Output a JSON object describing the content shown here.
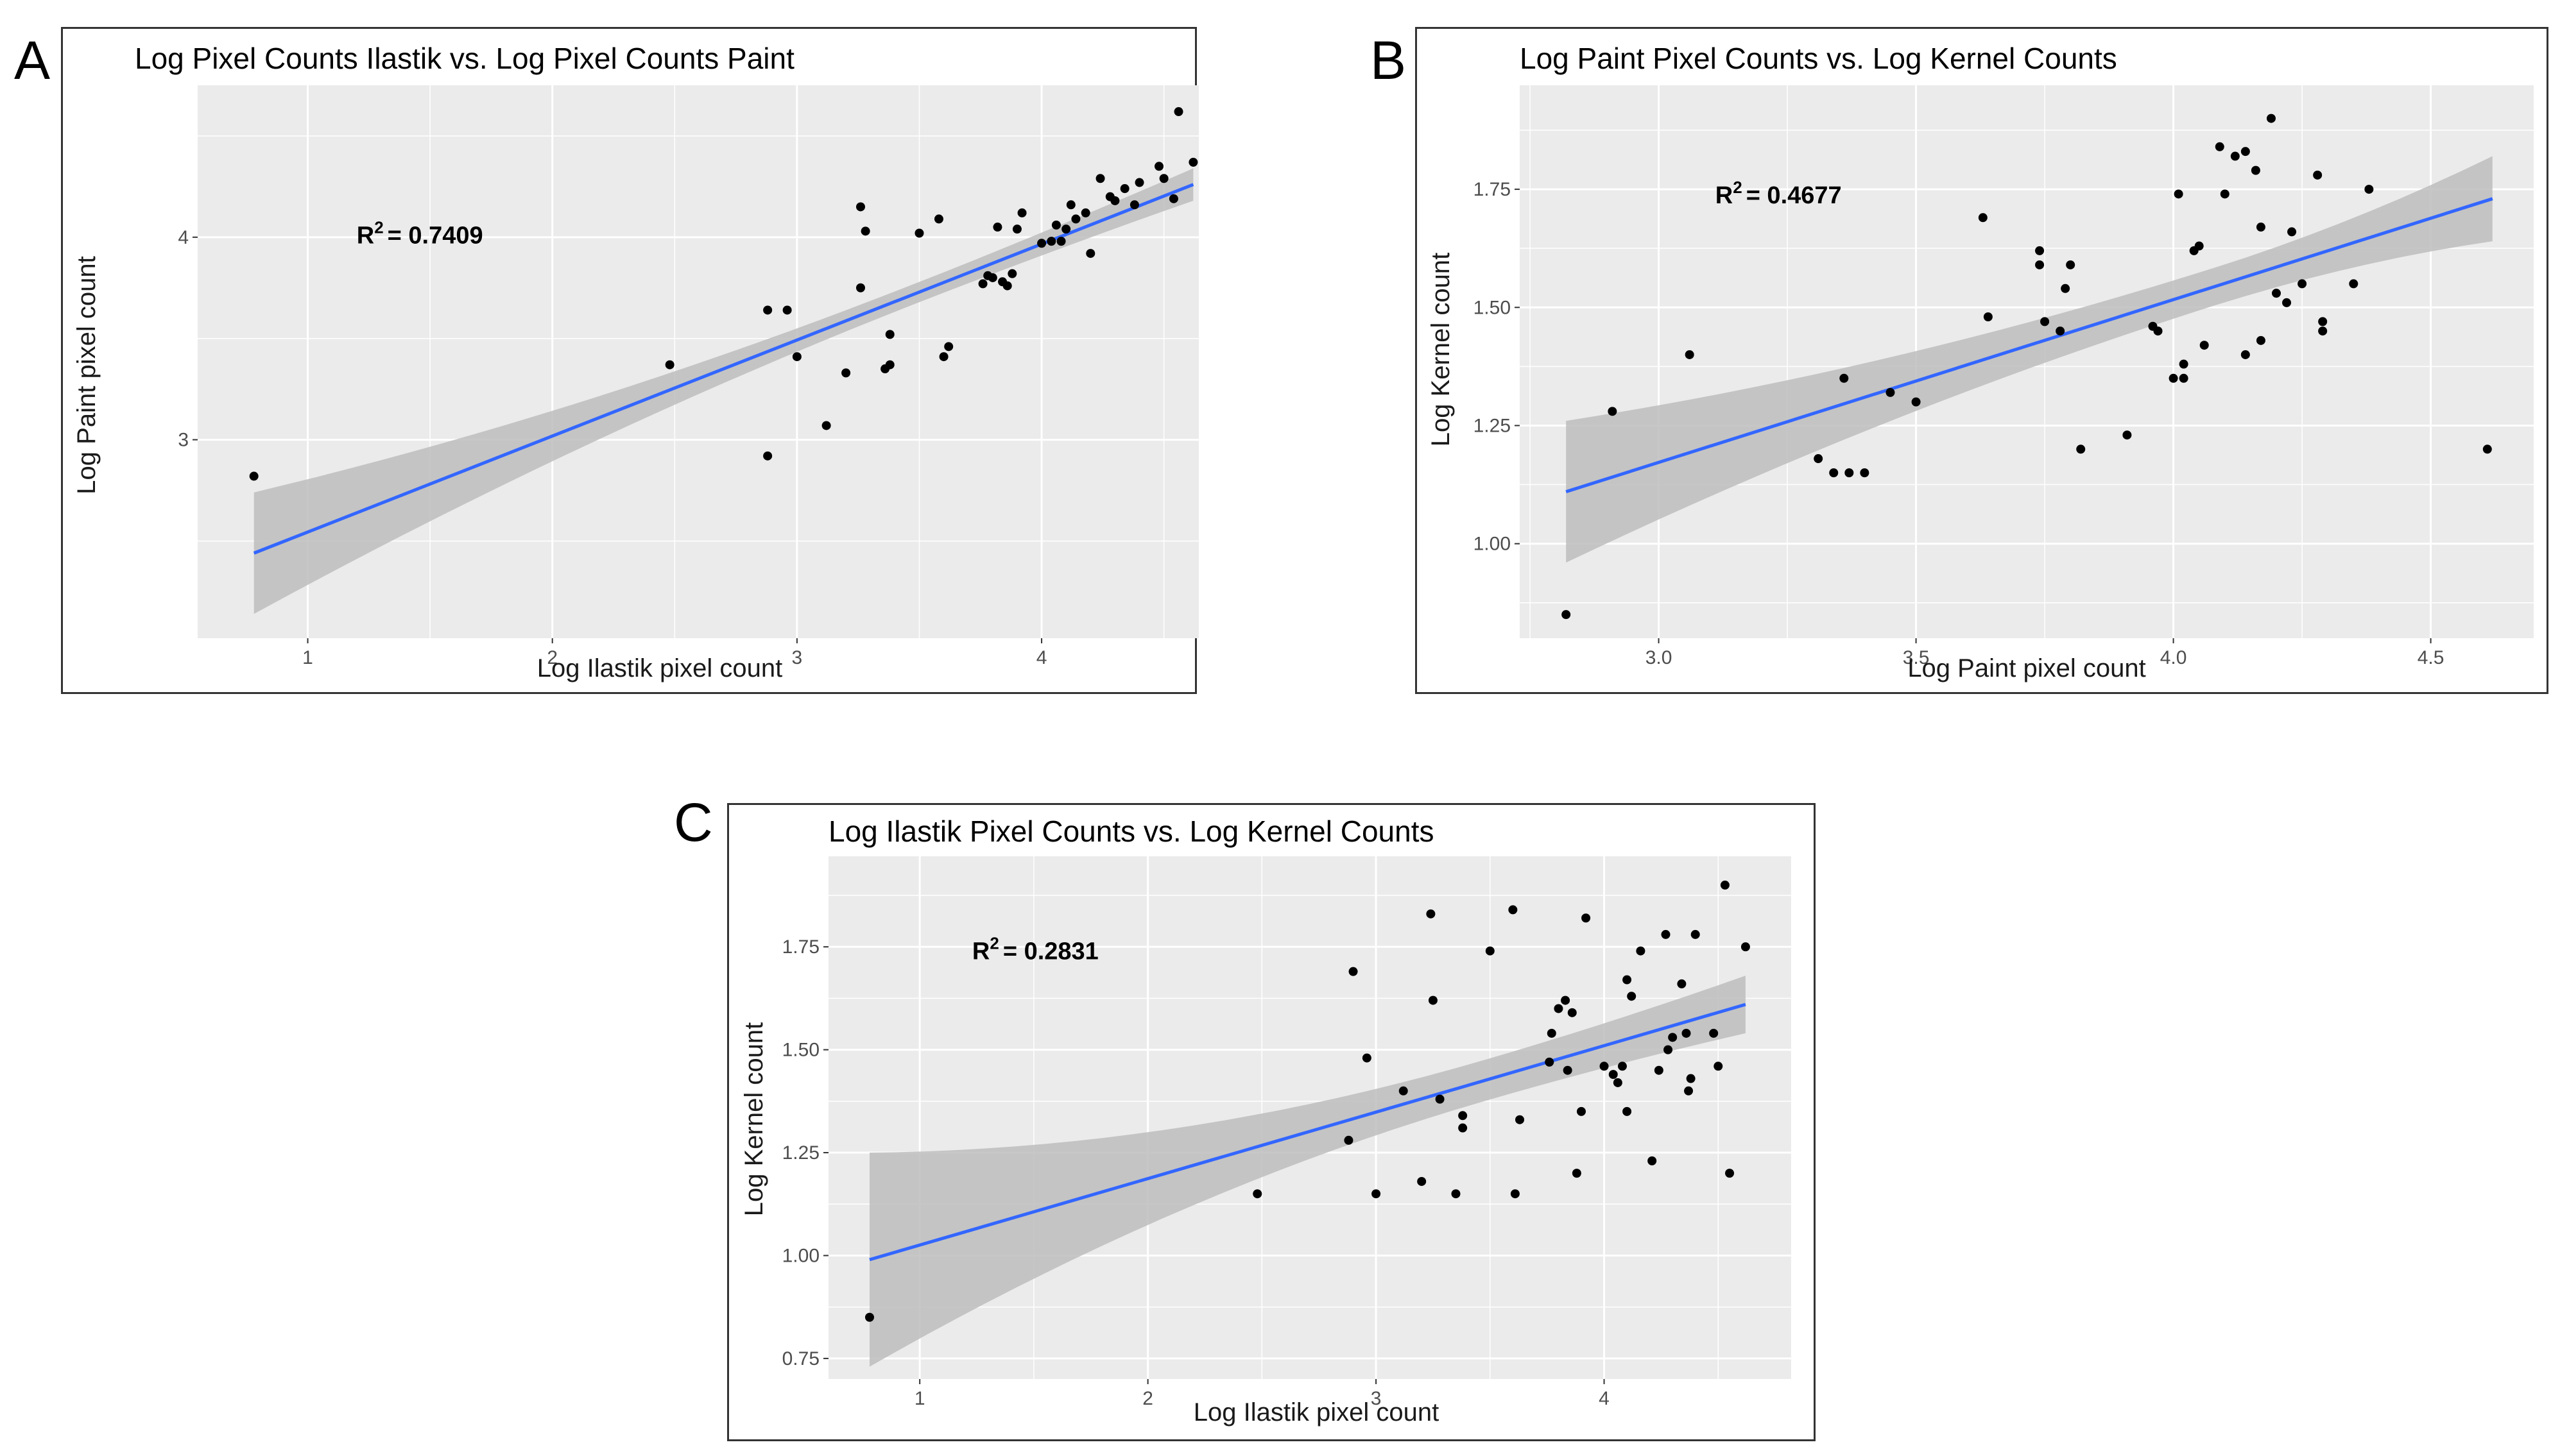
{
  "panels": [
    "A",
    "B",
    "C"
  ],
  "colors": {
    "panel_bg": "#ebebeb",
    "grid": "#ffffff",
    "band": "#bdbdbd",
    "line": "#3366ff",
    "point": "#000000"
  },
  "chart_data": [
    {
      "id": "A",
      "type": "scatter",
      "title": "Log Pixel Counts Ilastik vs. Log Pixel Counts Paint",
      "xlabel": "Log Ilastik pixel count",
      "ylabel": "Log Paint pixel count",
      "xlim": [
        0.55,
        4.8
      ],
      "ylim": [
        2.02,
        4.75
      ],
      "xticks": [
        1,
        2,
        3,
        4
      ],
      "xtick_labels": [
        "1",
        "2",
        "3",
        "4"
      ],
      "yticks": [
        3,
        4
      ],
      "ytick_labels": [
        "3",
        "4"
      ],
      "annotation": {
        "label": "R",
        "sup": "2",
        "value": "= 0.7409",
        "x": 1.2,
        "y": 3.97
      },
      "fit": {
        "x0": 0.78,
        "y0": 2.44,
        "x1": 4.62,
        "y1": 4.26,
        "se0": 0.3,
        "se1": 0.08,
        "se_mid": 0.05
      },
      "points": [
        [
          0.78,
          2.82
        ],
        [
          2.48,
          3.37
        ],
        [
          2.88,
          2.92
        ],
        [
          2.88,
          3.64
        ],
        [
          2.96,
          3.64
        ],
        [
          3.0,
          3.41
        ],
        [
          3.12,
          3.07
        ],
        [
          3.2,
          3.33
        ],
        [
          3.26,
          3.75
        ],
        [
          3.26,
          4.15
        ],
        [
          3.28,
          4.03
        ],
        [
          3.36,
          3.35
        ],
        [
          3.38,
          3.37
        ],
        [
          3.38,
          3.52
        ],
        [
          3.5,
          4.02
        ],
        [
          3.58,
          4.09
        ],
        [
          3.6,
          3.41
        ],
        [
          3.62,
          3.46
        ],
        [
          3.76,
          3.77
        ],
        [
          3.78,
          3.81
        ],
        [
          3.8,
          3.8
        ],
        [
          3.82,
          4.05
        ],
        [
          3.84,
          3.78
        ],
        [
          3.86,
          3.76
        ],
        [
          3.88,
          3.82
        ],
        [
          3.9,
          4.04
        ],
        [
          3.92,
          4.12
        ],
        [
          4.0,
          3.97
        ],
        [
          4.04,
          3.98
        ],
        [
          4.06,
          4.06
        ],
        [
          4.08,
          3.98
        ],
        [
          4.1,
          4.04
        ],
        [
          4.12,
          4.16
        ],
        [
          4.14,
          4.09
        ],
        [
          4.18,
          4.12
        ],
        [
          4.2,
          3.92
        ],
        [
          4.24,
          4.29
        ],
        [
          4.28,
          4.2
        ],
        [
          4.3,
          4.18
        ],
        [
          4.34,
          4.24
        ],
        [
          4.38,
          4.16
        ],
        [
          4.4,
          4.27
        ],
        [
          4.48,
          4.35
        ],
        [
          4.5,
          4.29
        ],
        [
          4.54,
          4.19
        ],
        [
          4.56,
          4.62
        ],
        [
          4.62,
          4.37
        ]
      ]
    },
    {
      "id": "B",
      "type": "scatter",
      "title": "Log Paint Pixel Counts vs. Log Kernel Counts",
      "xlabel": "Log Paint pixel count",
      "ylabel": "Log Kernel count",
      "xlim": [
        2.73,
        4.7
      ],
      "ylim": [
        0.8,
        1.97
      ],
      "xticks": [
        3.0,
        3.5,
        4.0,
        4.5
      ],
      "xtick_labels": [
        "3.0",
        "3.5",
        "4.0",
        "4.5"
      ],
      "yticks": [
        1.0,
        1.25,
        1.5,
        1.75
      ],
      "ytick_labels": [
        "1.00",
        "1.25",
        "1.50",
        "1.75"
      ],
      "annotation": {
        "label": "R",
        "sup": "2",
        "value": "= 0.4677",
        "x": 3.11,
        "y": 1.72
      },
      "fit": {
        "x0": 2.82,
        "y0": 1.11,
        "x1": 4.62,
        "y1": 1.73,
        "se0": 0.15,
        "se1": 0.09,
        "se_mid": 0.04
      },
      "points": [
        [
          2.82,
          0.85
        ],
        [
          2.91,
          1.28
        ],
        [
          3.06,
          1.4
        ],
        [
          3.31,
          1.18
        ],
        [
          3.34,
          1.15
        ],
        [
          3.36,
          1.35
        ],
        [
          3.37,
          1.15
        ],
        [
          3.4,
          1.15
        ],
        [
          3.45,
          1.32
        ],
        [
          3.5,
          1.3
        ],
        [
          3.63,
          1.69
        ],
        [
          3.64,
          1.48
        ],
        [
          3.74,
          1.62
        ],
        [
          3.74,
          1.59
        ],
        [
          3.75,
          1.47
        ],
        [
          3.78,
          1.45
        ],
        [
          3.79,
          1.54
        ],
        [
          3.8,
          1.59
        ],
        [
          3.82,
          1.2
        ],
        [
          3.91,
          1.23
        ],
        [
          3.96,
          1.46
        ],
        [
          3.97,
          1.45
        ],
        [
          4.0,
          1.35
        ],
        [
          4.01,
          1.74
        ],
        [
          4.02,
          1.38
        ],
        [
          4.02,
          1.35
        ],
        [
          4.04,
          1.62
        ],
        [
          4.05,
          1.63
        ],
        [
          4.06,
          1.42
        ],
        [
          4.09,
          1.84
        ],
        [
          4.1,
          1.74
        ],
        [
          4.12,
          1.82
        ],
        [
          4.14,
          1.4
        ],
        [
          4.14,
          1.83
        ],
        [
          4.16,
          1.79
        ],
        [
          4.17,
          1.67
        ],
        [
          4.17,
          1.43
        ],
        [
          4.19,
          1.9
        ],
        [
          4.2,
          1.53
        ],
        [
          4.22,
          1.51
        ],
        [
          4.23,
          1.66
        ],
        [
          4.25,
          1.55
        ],
        [
          4.28,
          1.78
        ],
        [
          4.29,
          1.47
        ],
        [
          4.29,
          1.45
        ],
        [
          4.35,
          1.55
        ],
        [
          4.38,
          1.75
        ],
        [
          4.61,
          1.2
        ]
      ]
    },
    {
      "id": "C",
      "type": "scatter",
      "title": "Log Ilastik Pixel Counts vs. Log Kernel Counts",
      "xlabel": "Log Ilastik pixel count",
      "ylabel": "Log Kernel count",
      "xlim": [
        0.6,
        4.82
      ],
      "ylim": [
        0.7,
        1.97
      ],
      "xticks": [
        1,
        2,
        3,
        4
      ],
      "xtick_labels": [
        "1",
        "2",
        "3",
        "4"
      ],
      "yticks": [
        0.75,
        1.0,
        1.25,
        1.5,
        1.75
      ],
      "ytick_labels": [
        "0.75",
        "1.00",
        "1.25",
        "1.50",
        "1.75"
      ],
      "annotation": {
        "label": "R",
        "sup": "2",
        "value": "= 0.2831",
        "x": 1.23,
        "y": 1.72
      },
      "fit": {
        "x0": 0.78,
        "y0": 0.99,
        "x1": 4.62,
        "y1": 1.61,
        "se0": 0.26,
        "se1": 0.07,
        "se_mid": 0.05
      },
      "points": [
        [
          0.78,
          0.85
        ],
        [
          2.48,
          1.15
        ],
        [
          2.88,
          1.28
        ],
        [
          2.9,
          1.69
        ],
        [
          2.96,
          1.48
        ],
        [
          3.0,
          1.15
        ],
        [
          3.12,
          1.4
        ],
        [
          3.2,
          1.18
        ],
        [
          3.24,
          1.83
        ],
        [
          3.25,
          1.62
        ],
        [
          3.28,
          1.38
        ],
        [
          3.35,
          1.15
        ],
        [
          3.38,
          1.34
        ],
        [
          3.38,
          1.31
        ],
        [
          3.5,
          1.74
        ],
        [
          3.6,
          1.84
        ],
        [
          3.61,
          1.15
        ],
        [
          3.63,
          1.33
        ],
        [
          3.76,
          1.47
        ],
        [
          3.77,
          1.54
        ],
        [
          3.8,
          1.6
        ],
        [
          3.83,
          1.62
        ],
        [
          3.84,
          1.45
        ],
        [
          3.86,
          1.59
        ],
        [
          3.88,
          1.2
        ],
        [
          3.9,
          1.35
        ],
        [
          3.92,
          1.82
        ],
        [
          4.0,
          1.46
        ],
        [
          4.04,
          1.44
        ],
        [
          4.06,
          1.42
        ],
        [
          4.08,
          1.46
        ],
        [
          4.1,
          1.67
        ],
        [
          4.1,
          1.35
        ],
        [
          4.12,
          1.63
        ],
        [
          4.16,
          1.74
        ],
        [
          4.21,
          1.23
        ],
        [
          4.24,
          1.45
        ],
        [
          4.27,
          1.78
        ],
        [
          4.28,
          1.5
        ],
        [
          4.3,
          1.53
        ],
        [
          4.34,
          1.66
        ],
        [
          4.36,
          1.54
        ],
        [
          4.37,
          1.4
        ],
        [
          4.38,
          1.43
        ],
        [
          4.4,
          1.78
        ],
        [
          4.48,
          1.54
        ],
        [
          4.5,
          1.46
        ],
        [
          4.53,
          1.9
        ],
        [
          4.55,
          1.2
        ],
        [
          4.62,
          1.75
        ]
      ]
    }
  ]
}
